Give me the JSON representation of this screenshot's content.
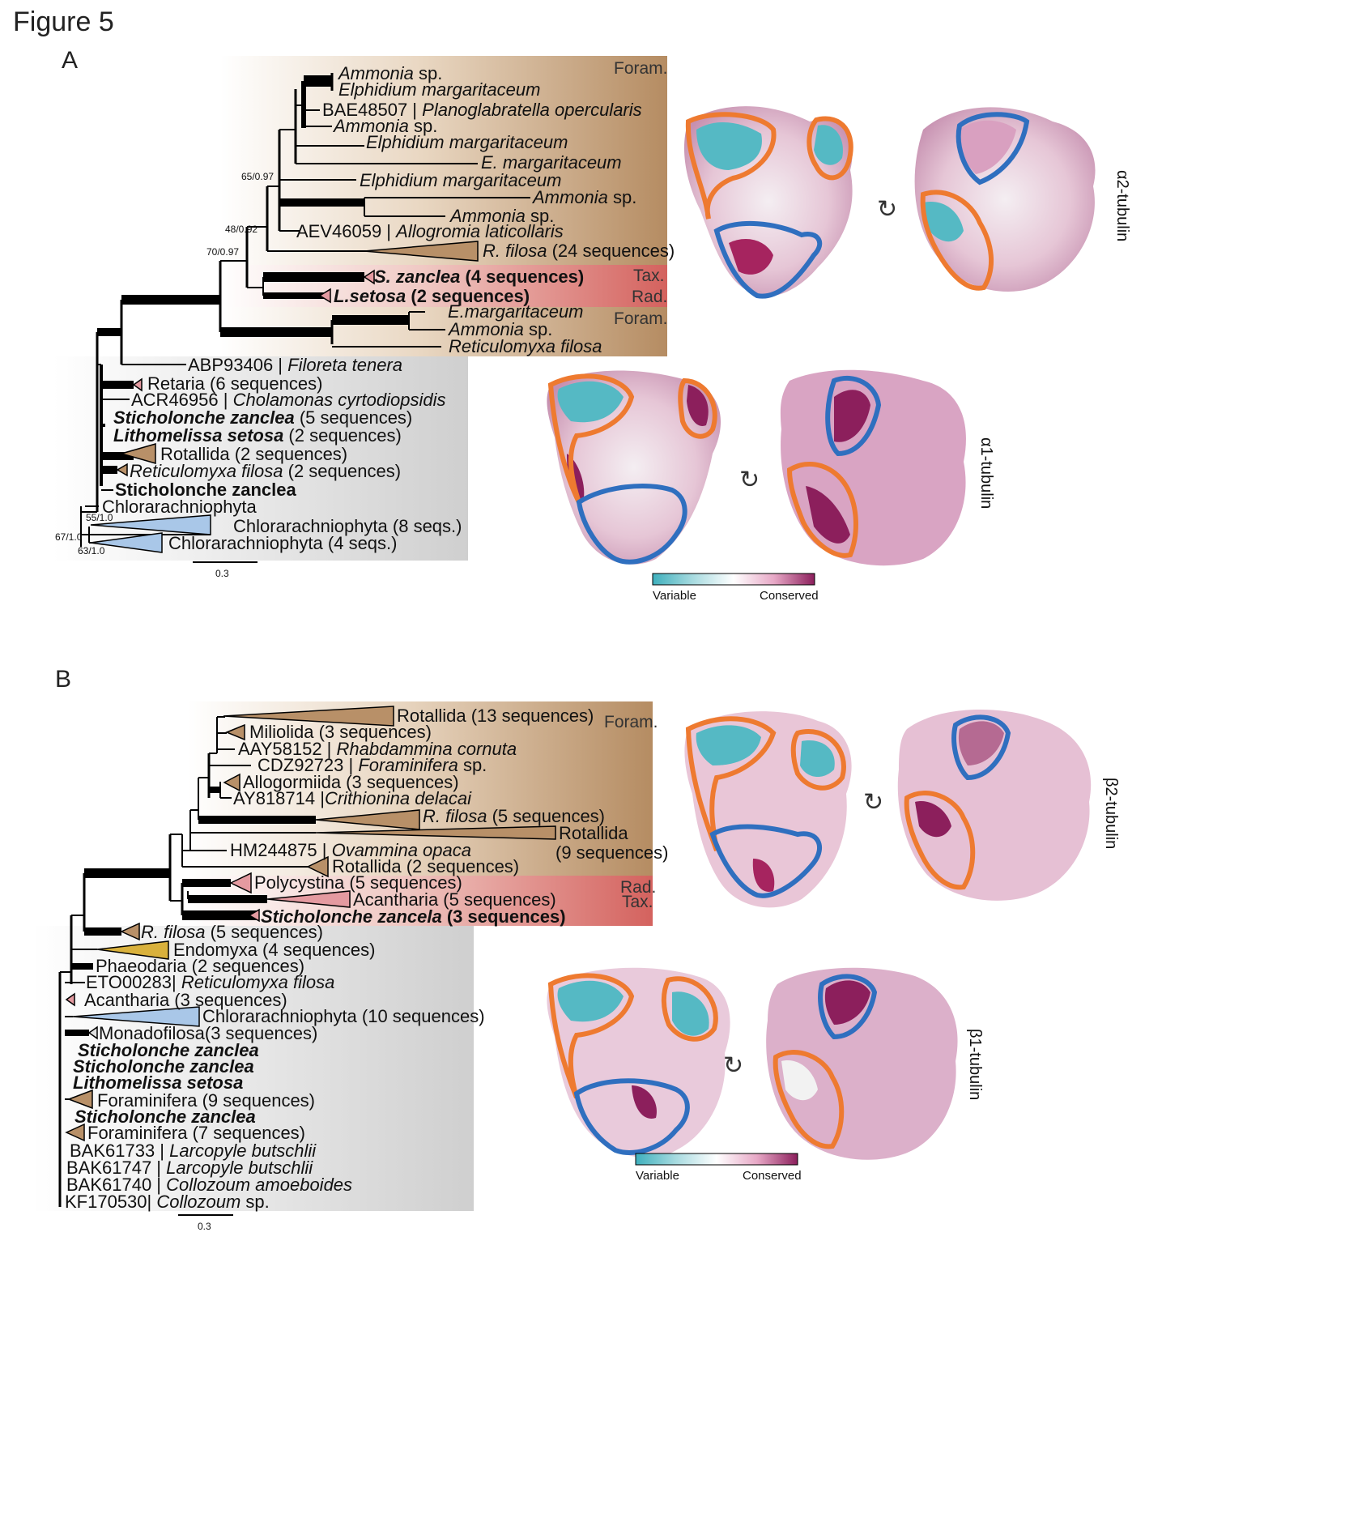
{
  "figure_title": "Figure 5",
  "panel_a": {
    "letter": "A",
    "labels": {
      "foram_top": "Foram.",
      "tax": "Tax.",
      "rad": "Rad.",
      "foram_bottom": "Foram."
    },
    "support": [
      "65/0.97",
      "48/0.92",
      "70/0.97",
      "55/1.0",
      "67/1.0",
      "63/1.0"
    ],
    "taxa": [
      {
        "acc": "",
        "name": "Ammonia",
        "suffix": " sp."
      },
      {
        "acc": "",
        "name": "Elphidium margaritaceum",
        "suffix": ""
      },
      {
        "acc": "BAE48507 | ",
        "name": "Planoglabratella opercularis",
        "suffix": ""
      },
      {
        "acc": "",
        "name": "Ammonia",
        "suffix": " sp."
      },
      {
        "acc": "",
        "name": "Elphidium margaritaceum",
        "suffix": ""
      },
      {
        "acc": "",
        "name": "E. margaritaceum",
        "suffix": ""
      },
      {
        "acc": "",
        "name": "Elphidium margaritaceum",
        "suffix": ""
      },
      {
        "acc": "",
        "name": "Ammonia",
        "suffix": " sp."
      },
      {
        "acc": "",
        "name": "Ammonia",
        "suffix": " sp."
      },
      {
        "acc": "AEV46059 | ",
        "name": "Allogromia laticollaris",
        "suffix": ""
      },
      {
        "acc": "",
        "name": "R. filosa",
        "suffix": " (24 sequences)"
      },
      {
        "acc": "",
        "name": "S. zanclea",
        "suffix": " (4  sequences)"
      },
      {
        "acc": "",
        "name": "L.setosa",
        "suffix": " (2 sequences)"
      },
      {
        "acc": "",
        "name": "E.margaritaceum",
        "suffix": ""
      },
      {
        "acc": "",
        "name": "Ammonia",
        "suffix": " sp."
      },
      {
        "acc": "",
        "name": "Reticulomyxa filosa",
        "suffix": ""
      },
      {
        "acc": "ABP93406 | ",
        "name": "Filoreta tenera",
        "suffix": ""
      },
      {
        "acc": "Retaria (6 sequences)",
        "name": "",
        "suffix": ""
      },
      {
        "acc": "ACR46956 | ",
        "name": "Cholamonas cyrtodiopsidis",
        "suffix": ""
      },
      {
        "acc": "",
        "name": "Sticholonche zanclea",
        "suffix": " (5 sequences)"
      },
      {
        "acc": "",
        "name": "Lithomelissa setosa",
        "suffix": " (2 sequences)"
      },
      {
        "acc": "Rotallida (2 sequences)",
        "name": "",
        "suffix": ""
      },
      {
        "acc": "",
        "name": "Reticulomyxa filosa",
        "suffix": " (2 sequences)"
      },
      {
        "acc": "Sticholonche zanclea",
        "name": "",
        "suffix": ""
      },
      {
        "acc": "Chlorarachniophyta",
        "name": "",
        "suffix": ""
      },
      {
        "acc": "Chlorarachniophyta (8 seqs.)",
        "name": "",
        "suffix": ""
      },
      {
        "acc": "Chlorarachniophyta (4 seqs.)",
        "name": "",
        "suffix": ""
      }
    ],
    "scale": "0.3",
    "structures": [
      {
        "label": "α2-tubulin"
      },
      {
        "label": "α1-tubulin"
      }
    ],
    "legend": {
      "low": "Variable",
      "high": "Conserved"
    }
  },
  "panel_b": {
    "letter": "B",
    "labels": {
      "foram": "Foram.",
      "rad": "Rad.",
      "tax": "Tax."
    },
    "taxa": [
      {
        "acc": "Rotallida (13 sequences)",
        "name": "",
        "suffix": ""
      },
      {
        "acc": "Miliolida (3 sequences)",
        "name": "",
        "suffix": ""
      },
      {
        "acc": "AAY58152 | ",
        "name": "Rhabdammina cornuta",
        "suffix": ""
      },
      {
        "acc": "CDZ92723 | ",
        "name": "Foraminifera",
        "suffix": " sp."
      },
      {
        "acc": "Allogormiida (3 sequences)",
        "name": "",
        "suffix": ""
      },
      {
        "acc": "AY818714 |",
        "name": "Crithionina delacai",
        "suffix": ""
      },
      {
        "acc": "",
        "name": "R. filosa",
        "suffix": " (5 sequences)"
      },
      {
        "acc": "Rotallida",
        "name": "",
        "suffix": ""
      },
      {
        "acc": "(9 sequences)",
        "name": "",
        "suffix": ""
      },
      {
        "acc": "HM244875 | ",
        "name": "Ovammina opaca",
        "suffix": ""
      },
      {
        "acc": "Rotallida (2 sequences)",
        "name": "",
        "suffix": ""
      },
      {
        "acc": "Polycystina (5 sequences)",
        "name": "",
        "suffix": ""
      },
      {
        "acc": "Acantharia (5 sequences)",
        "name": "",
        "suffix": ""
      },
      {
        "acc": "",
        "name": "Sticholonche zancela",
        "suffix": " (3 sequences)"
      },
      {
        "acc": "",
        "name": "R. filosa",
        "suffix": " (5 sequences)"
      },
      {
        "acc": "Endomyxa (4 sequences)",
        "name": "",
        "suffix": ""
      },
      {
        "acc": "Phaeodaria (2 sequences)",
        "name": "",
        "suffix": ""
      },
      {
        "acc": "ETO00283| ",
        "name": "Reticulomyxa filosa",
        "suffix": ""
      },
      {
        "acc": "Acantharia (3 sequences)",
        "name": "",
        "suffix": ""
      },
      {
        "acc": "Chlorarachniophyta (10 sequences)",
        "name": "",
        "suffix": ""
      },
      {
        "acc": "Monadofilosa(3 sequences)",
        "name": "",
        "suffix": ""
      },
      {
        "acc": "",
        "name": "Sticholonche zanclea",
        "suffix": ""
      },
      {
        "acc": "",
        "name": "Sticholonche zanclea",
        "suffix": ""
      },
      {
        "acc": "",
        "name": "Lithomelissa setosa",
        "suffix": ""
      },
      {
        "acc": "Foraminifera (9 sequences)",
        "name": "",
        "suffix": ""
      },
      {
        "acc": "",
        "name": "Sticholonche zanclea",
        "suffix": ""
      },
      {
        "acc": "Foraminifera (7 sequences)",
        "name": "",
        "suffix": ""
      },
      {
        "acc": "BAK61733 | ",
        "name": "Larcopyle butschlii",
        "suffix": ""
      },
      {
        "acc": "BAK61747 | ",
        "name": "Larcopyle butschlii",
        "suffix": ""
      },
      {
        "acc": "BAK61740 | ",
        "name": "Collozoum amoeboides",
        "suffix": ""
      },
      {
        "acc": "KF170530| ",
        "name": "Collozoum",
        "suffix": " sp."
      }
    ],
    "scale": "0.3",
    "structures": [
      {
        "label": "β2-tubulin"
      },
      {
        "label": "β1-tubulin"
      }
    ],
    "legend": {
      "low": "Variable",
      "high": "Conserved"
    }
  },
  "colors": {
    "foram": "#b8926a",
    "rad_tax": "#d46a6a",
    "grey_box": "#d8d8d8",
    "outline_orange": "#ee7a30",
    "outline_blue": "#2f6fbf",
    "variable": "#4bb8c4",
    "conserved": "#8c1f5c"
  }
}
